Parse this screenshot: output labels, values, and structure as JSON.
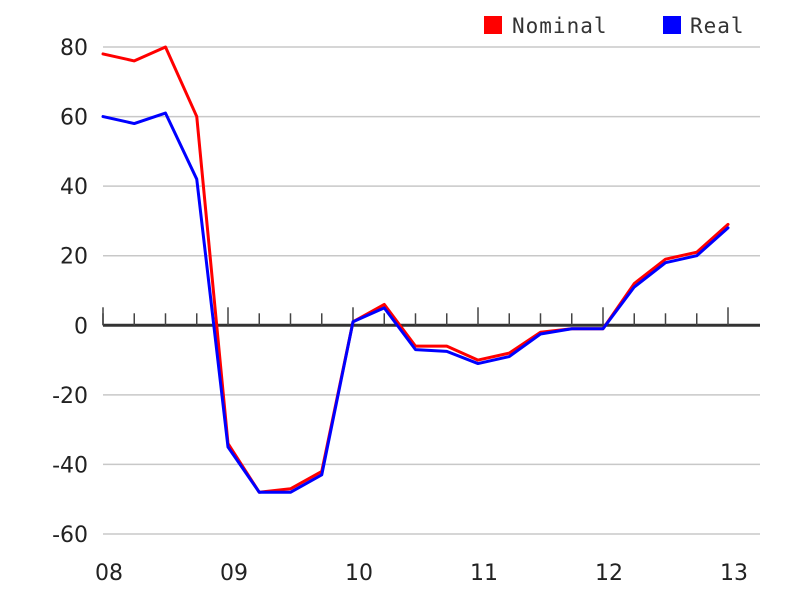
{
  "chart_data": {
    "type": "line",
    "title": "",
    "xlabel": "",
    "ylabel": "",
    "x": [
      2008.0,
      2008.25,
      2008.5,
      2008.75,
      2009.0,
      2009.25,
      2009.5,
      2009.75,
      2010.0,
      2010.25,
      2010.5,
      2010.75,
      2011.0,
      2011.25,
      2011.5,
      2011.75,
      2012.0,
      2012.25,
      2012.5,
      2012.75,
      2013.0
    ],
    "x_ticks": [
      {
        "value": 2008,
        "label": "08"
      },
      {
        "value": 2009,
        "label": "09"
      },
      {
        "value": 2010,
        "label": "10"
      },
      {
        "value": 2011,
        "label": "11"
      },
      {
        "value": 2012,
        "label": "12"
      },
      {
        "value": 2013,
        "label": "13"
      }
    ],
    "ylim": [
      -60,
      80
    ],
    "y_ticks": [
      80,
      60,
      40,
      20,
      0,
      -20,
      -40,
      -60
    ],
    "grid": true,
    "legend_position": "top-right",
    "series": [
      {
        "name": "Nominal",
        "color": "#ff0000",
        "values": [
          78,
          76,
          80,
          60,
          -34,
          -48,
          -47,
          -42,
          1,
          6,
          -6,
          -6,
          -10,
          -8,
          -2,
          -1,
          -1,
          12,
          19,
          21,
          29
        ]
      },
      {
        "name": "Real",
        "color": "#0000ff",
        "values": [
          60,
          58,
          61,
          42,
          -35,
          -48,
          -48,
          -43,
          1,
          5,
          -7,
          -7.5,
          -11,
          -9,
          -2.5,
          -1,
          -1,
          11,
          18,
          20,
          28
        ]
      }
    ]
  }
}
